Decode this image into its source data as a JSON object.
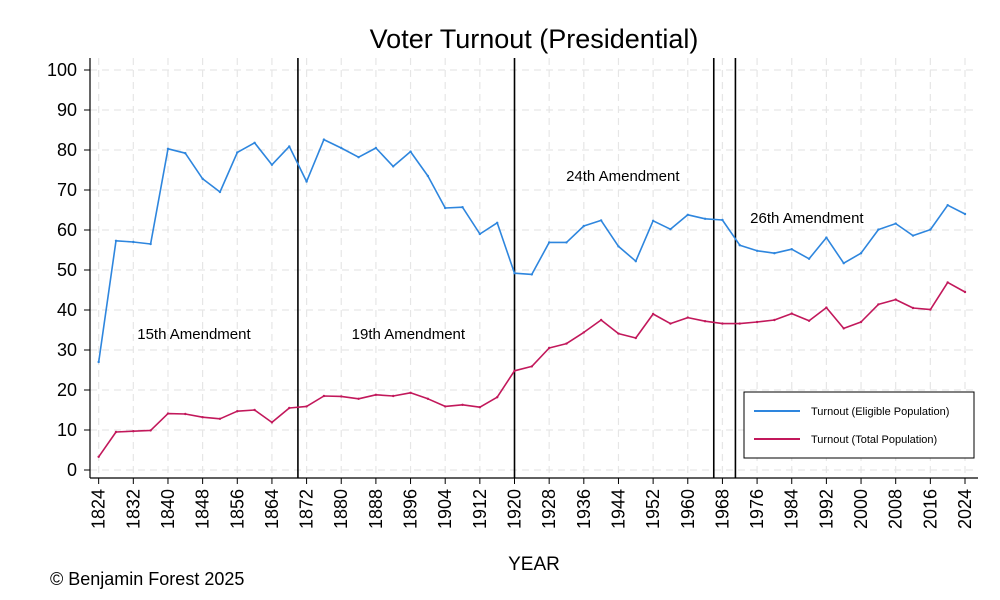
{
  "chart_data": {
    "type": "line",
    "title": "Voter Turnout (Presidential)",
    "xlabel": "YEAR",
    "ylabel": "",
    "xlim": [
      1822,
      2027
    ],
    "ylim": [
      -2,
      103
    ],
    "yticks": [
      0,
      10,
      20,
      30,
      40,
      50,
      60,
      70,
      80,
      90,
      100
    ],
    "xticks": [
      1824,
      1832,
      1840,
      1848,
      1856,
      1864,
      1872,
      1880,
      1888,
      1896,
      1904,
      1912,
      1920,
      1928,
      1936,
      1944,
      1952,
      1960,
      1968,
      1976,
      1984,
      1992,
      2000,
      2008,
      2016,
      2024
    ],
    "grid": true,
    "legend_position": "bottom-right",
    "credit": "© Benjamin Forest 2025",
    "x": [
      1824,
      1828,
      1832,
      1836,
      1840,
      1844,
      1848,
      1852,
      1856,
      1860,
      1864,
      1868,
      1872,
      1876,
      1880,
      1884,
      1888,
      1892,
      1896,
      1900,
      1904,
      1908,
      1912,
      1916,
      1920,
      1924,
      1928,
      1932,
      1936,
      1940,
      1944,
      1948,
      1952,
      1956,
      1960,
      1964,
      1968,
      1972,
      1976,
      1980,
      1984,
      1988,
      1992,
      1996,
      2000,
      2004,
      2008,
      2012,
      2016,
      2020,
      2024
    ],
    "series": [
      {
        "name": "Turnout (Eligible Population)",
        "color": "#2e86de",
        "values": [
          27.0,
          57.3,
          57.0,
          56.5,
          80.3,
          79.2,
          72.8,
          69.5,
          79.4,
          81.8,
          76.3,
          80.9,
          72.1,
          82.6,
          80.5,
          78.2,
          80.5,
          75.9,
          79.6,
          73.5,
          65.5,
          65.7,
          59.0,
          61.8,
          49.2,
          48.9,
          56.9,
          56.9,
          61.0,
          62.4,
          55.9,
          52.2,
          62.3,
          60.2,
          63.8,
          62.8,
          62.5,
          56.2,
          54.8,
          54.2,
          55.2,
          52.8,
          58.1,
          51.7,
          54.2,
          60.1,
          61.6,
          58.6,
          60.1,
          66.2,
          64.0
        ]
      },
      {
        "name": "Turnout (Total Population)",
        "color": "#c2185b",
        "values": [
          3.3,
          9.5,
          9.7,
          9.9,
          14.1,
          14.0,
          13.2,
          12.8,
          14.7,
          15.0,
          11.9,
          15.5,
          15.9,
          18.5,
          18.4,
          17.8,
          18.8,
          18.5,
          19.3,
          17.8,
          15.9,
          16.3,
          15.7,
          18.2,
          24.8,
          25.9,
          30.5,
          31.6,
          34.4,
          37.5,
          34.1,
          33.0,
          39.0,
          36.6,
          38.1,
          37.2,
          36.6,
          36.6,
          37.0,
          37.5,
          39.1,
          37.3,
          40.6,
          35.4,
          37.0,
          41.4,
          42.6,
          40.5,
          40.1,
          46.9,
          44.5
        ]
      }
    ],
    "vlines": [
      1870,
      1920,
      1966,
      1971
    ],
    "annotations": [
      {
        "text": "15th Amendment",
        "x": 1846,
        "y": 34
      },
      {
        "text": "19th Amendment",
        "x": 1895.5,
        "y": 34
      },
      {
        "text": "24th Amendment",
        "x": 1945,
        "y": 73.5
      },
      {
        "text": "26th Amendment",
        "x": 1987.5,
        "y": 63
      }
    ]
  }
}
